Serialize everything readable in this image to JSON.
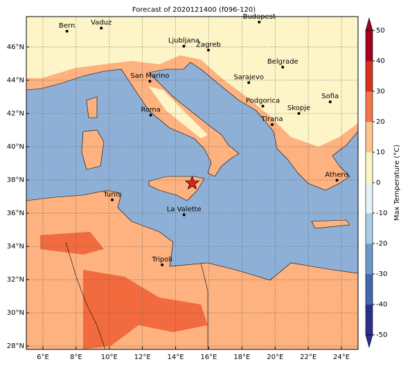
{
  "title": "Forecast of 2020121400 (f096-120)",
  "map": {
    "lon_range": [
      5,
      25
    ],
    "lat_range": [
      27.8,
      47.83
    ],
    "lon_ticks": [
      {
        "value": 6,
        "label": "6°E"
      },
      {
        "value": 8,
        "label": "8°E"
      },
      {
        "value": 10,
        "label": "10°E"
      },
      {
        "value": 12,
        "label": "12°E"
      },
      {
        "value": 14,
        "label": "14°E"
      },
      {
        "value": 16,
        "label": "16°E"
      },
      {
        "value": 18,
        "label": "18°E"
      },
      {
        "value": 20,
        "label": "20°E"
      },
      {
        "value": 22,
        "label": "22°E"
      },
      {
        "value": 24,
        "label": "24°E"
      }
    ],
    "lat_ticks": [
      {
        "value": 28,
        "label": "28°N"
      },
      {
        "value": 30,
        "label": "30°N"
      },
      {
        "value": 32,
        "label": "32°N"
      },
      {
        "value": 34,
        "label": "34°N"
      },
      {
        "value": 36,
        "label": "36°N"
      },
      {
        "value": 38,
        "label": "38°N"
      },
      {
        "value": 40,
        "label": "40°N"
      },
      {
        "value": 42,
        "label": "42°N"
      },
      {
        "value": 44,
        "label": "44°N"
      },
      {
        "value": 46,
        "label": "46°N"
      }
    ],
    "cities": [
      {
        "name": "Bern",
        "lon": 7.45,
        "lat": 46.95
      },
      {
        "name": "Vaduz",
        "lon": 9.52,
        "lat": 47.14
      },
      {
        "name": "Budapest",
        "lon": 19.04,
        "lat": 47.5
      },
      {
        "name": "Ljubljana",
        "lon": 14.5,
        "lat": 46.05
      },
      {
        "name": "Zagreb",
        "lon": 15.98,
        "lat": 45.81
      },
      {
        "name": "Belgrade",
        "lon": 20.46,
        "lat": 44.79
      },
      {
        "name": "San Marino",
        "lon": 12.45,
        "lat": 43.94
      },
      {
        "name": "Sarajevo",
        "lon": 18.41,
        "lat": 43.86
      },
      {
        "name": "Sofia",
        "lon": 23.32,
        "lat": 42.7
      },
      {
        "name": "Roma",
        "lon": 12.5,
        "lat": 41.9
      },
      {
        "name": "Podgorica",
        "lon": 19.26,
        "lat": 42.44
      },
      {
        "name": "Skopje",
        "lon": 21.43,
        "lat": 42.0
      },
      {
        "name": "Tirana",
        "lon": 19.82,
        "lat": 41.33
      },
      {
        "name": "Athens",
        "lon": 23.73,
        "lat": 37.98
      },
      {
        "name": "Tunis",
        "lon": 10.18,
        "lat": 36.8
      },
      {
        "name": "La Valette",
        "lon": 14.51,
        "lat": 35.9
      },
      {
        "name": "Tripoli",
        "lon": 13.19,
        "lat": 32.89
      }
    ],
    "marker": {
      "lon": 15.0,
      "lat": 37.8,
      "color": "#e8201c"
    }
  },
  "colorbar": {
    "label": "Max Temperature (°C)",
    "lim": [
      -50,
      50
    ],
    "ticks": [
      -50,
      -40,
      -30,
      -20,
      -10,
      0,
      10,
      20,
      30,
      40,
      50
    ],
    "colors": [
      "#2c2f8c",
      "#3f68ad",
      "#6b9ac6",
      "#a9cde2",
      "#e3f3f6",
      "#fdf5c4",
      "#fdc58d",
      "#f3784a",
      "#d7301f",
      "#a50021"
    ]
  }
}
